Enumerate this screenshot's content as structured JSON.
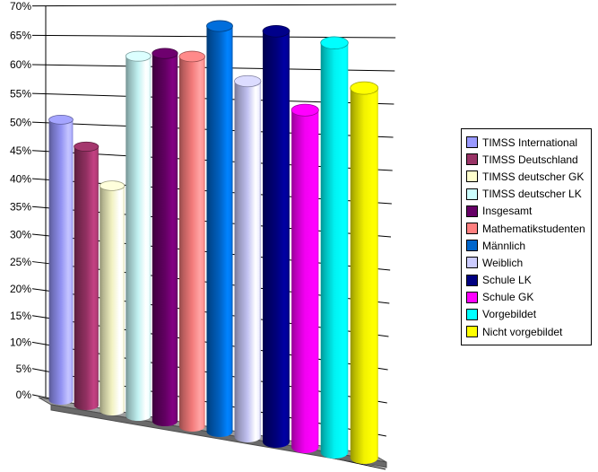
{
  "background_color": "#FFFFFF",
  "chart_data": {
    "type": "bar",
    "style": "3d-cylinder",
    "title": "",
    "orientation": "vertical",
    "unit": "%",
    "ylim": [
      0,
      70
    ],
    "y_tick_step": 5,
    "y_tick_labels": [
      "0%",
      "5%",
      "10%",
      "15%",
      "20%",
      "25%",
      "30%",
      "35%",
      "40%",
      "45%",
      "50%",
      "55%",
      "60%",
      "65%",
      "70%"
    ],
    "grid": true,
    "legend_position": "right",
    "categories": [
      "TIMSS International",
      "TIMSS Deutschland",
      "TIMSS deutscher GK",
      "TIMSS deutscher LK",
      "Insgesamt",
      "Mathematikstudenten",
      "Männlich",
      "Weiblich",
      "Schule LK",
      "Schule GK",
      "Vorgebildet",
      "Nicht vorgebildet"
    ],
    "series": [
      {
        "name": "TIMSS International",
        "value": 50,
        "color": "#9999FF"
      },
      {
        "name": "TIMSS Deutschland",
        "value": 45.5,
        "color": "#993366"
      },
      {
        "name": "TIMSS deutscher GK",
        "value": 39,
        "color": "#FFFFCC"
      },
      {
        "name": "TIMSS deutscher LK",
        "value": 61.5,
        "color": "#CCFFFF"
      },
      {
        "name": "Insgesamt",
        "value": 62,
        "color": "#660066"
      },
      {
        "name": "Mathematikstudenten",
        "value": 61.5,
        "color": "#FF8080"
      },
      {
        "name": "Männlich",
        "value": 66.5,
        "color": "#0066CC"
      },
      {
        "name": "Weiblich",
        "value": 57.5,
        "color": "#CCCCFF"
      },
      {
        "name": "Schule LK",
        "value": 65.5,
        "color": "#000080"
      },
      {
        "name": "Schule GK",
        "value": 53,
        "color": "#FF00FF"
      },
      {
        "name": "Vorgebildet",
        "value": 63.5,
        "color": "#00FFFF"
      },
      {
        "name": "Nicht vorgebildet",
        "value": 56.5,
        "color": "#FFFF00"
      }
    ]
  },
  "colors": {
    "gridline": "#000000",
    "axis": "#000000",
    "floor_top": "#9B9B9B",
    "floor_front": "#6A6A6A",
    "floor_outline": "#4D4D4D",
    "legend_border": "#000000",
    "legend_background": "#FFFFFF"
  }
}
